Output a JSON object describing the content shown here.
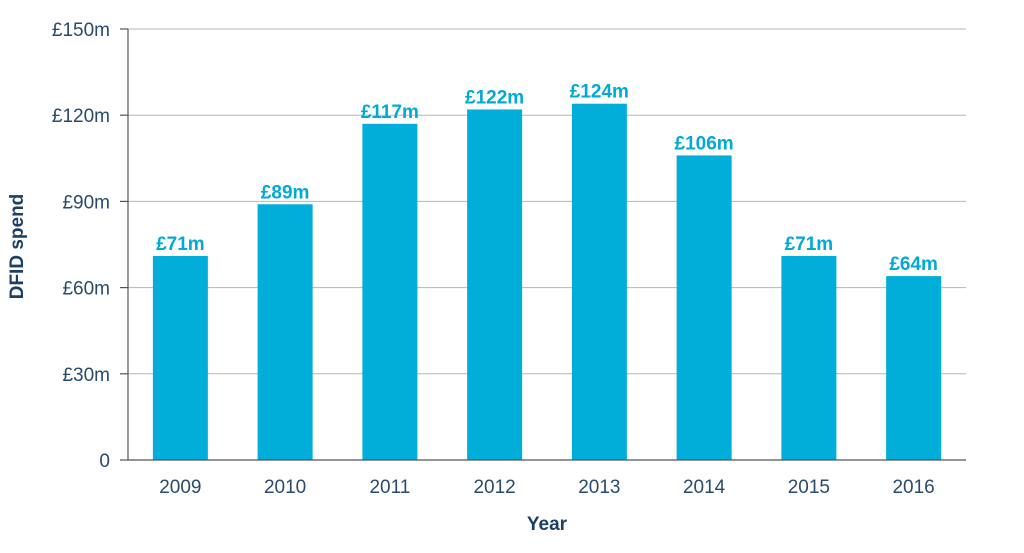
{
  "chart_data": {
    "type": "bar",
    "title": "",
    "xlabel": "Year",
    "ylabel": "DFID spend",
    "categories": [
      "2009",
      "2010",
      "2011",
      "2012",
      "2013",
      "2014",
      "2015",
      "2016"
    ],
    "values": [
      71,
      89,
      117,
      122,
      124,
      106,
      71,
      64
    ],
    "data_labels": [
      "£71m",
      "£89m",
      "£117m",
      "£122m",
      "£124m",
      "£106m",
      "£71m",
      "£64m"
    ],
    "ylim": [
      0,
      150
    ],
    "yticks": [
      0,
      30,
      60,
      90,
      120,
      150
    ],
    "ytick_labels": [
      "0",
      "£30m",
      "£60m",
      "£90m",
      "£120m",
      "£150m"
    ],
    "grid": true,
    "legend": "none",
    "bar_color": "#00aed9",
    "label_color": "#00a9d6",
    "axis_title_color": "#1d3f66"
  }
}
